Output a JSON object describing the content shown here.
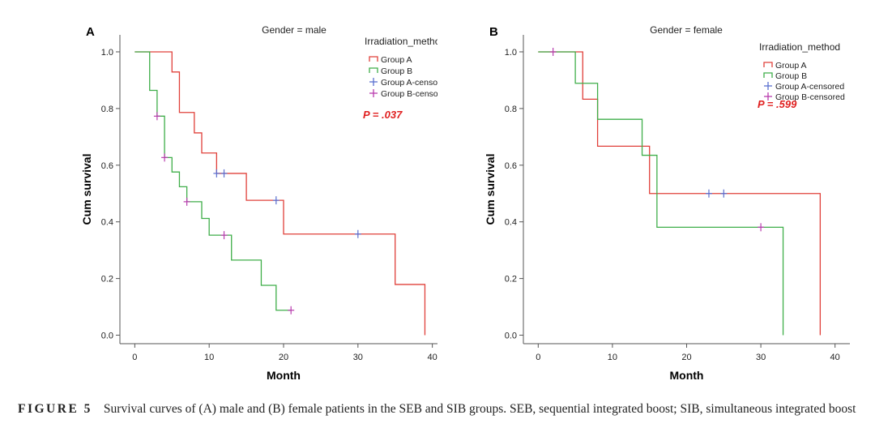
{
  "figure": {
    "label": "FIGURE 5",
    "caption": "Survival curves of (A) male and (B) female patients in the SEB and SIB groups. SEB, sequential integrated boost; SIB, simultaneous integrated boost"
  },
  "legend_title": "Irradiation_method",
  "legend_entries": [
    "Group A",
    "Group B",
    "Group A-censored",
    "Group B-censored"
  ],
  "colors": {
    "group_a": "#e0403a",
    "group_b": "#3fae49",
    "censor_a": "#5a6fd0",
    "censor_b": "#b83cae",
    "p_value": "#e02020"
  },
  "chart_data": [
    {
      "type": "line",
      "panel_label": "A",
      "title": "Gender = male",
      "xlabel": "Month",
      "ylabel": "Cum survival",
      "xlim": [
        -2,
        42
      ],
      "ylim": [
        -0.03,
        1.06
      ],
      "xticks": [
        0,
        10,
        20,
        30,
        40
      ],
      "yticks": [
        0.0,
        0.2,
        0.4,
        0.6,
        0.8,
        1.0
      ],
      "ytick_labels": [
        "0.0",
        "0.2",
        "0.4",
        "0.6",
        "0.8",
        "1.0"
      ],
      "p_value": "P = .037",
      "series": [
        {
          "name": "Group A",
          "x": [
            0,
            5,
            6,
            8,
            9,
            11,
            15,
            20,
            35,
            39,
            39
          ],
          "y": [
            1.0,
            0.929,
            0.786,
            0.714,
            0.643,
            0.571,
            0.476,
            0.357,
            0.179,
            0.179,
            0.0
          ]
        },
        {
          "name": "Group B",
          "x": [
            0,
            2,
            3,
            4,
            5,
            6,
            7,
            9,
            10,
            13,
            17,
            19,
            21
          ],
          "y": [
            1.0,
            0.864,
            0.773,
            0.627,
            0.576,
            0.524,
            0.471,
            0.412,
            0.353,
            0.265,
            0.176,
            0.088,
            0.088
          ]
        },
        {
          "name": "Group A-censored",
          "x": [
            11,
            12,
            19,
            30
          ],
          "y": [
            0.571,
            0.571,
            0.476,
            0.357
          ]
        },
        {
          "name": "Group B-censored",
          "x": [
            3,
            4,
            7,
            12,
            21
          ],
          "y": [
            0.773,
            0.627,
            0.471,
            0.353,
            0.088
          ]
        }
      ]
    },
    {
      "type": "line",
      "panel_label": "B",
      "title": "Gender = female",
      "xlabel": "Month",
      "ylabel": "Cum survival",
      "xlim": [
        -2,
        42
      ],
      "ylim": [
        -0.03,
        1.06
      ],
      "xticks": [
        0,
        10,
        20,
        30,
        40
      ],
      "yticks": [
        0.0,
        0.2,
        0.4,
        0.6,
        0.8,
        1.0
      ],
      "ytick_labels": [
        "0.0",
        "0.2",
        "0.4",
        "0.6",
        "0.8",
        "1.0"
      ],
      "p_value": "P = .599",
      "series": [
        {
          "name": "Group A",
          "x": [
            0,
            6,
            8,
            15,
            38,
            38
          ],
          "y": [
            1.0,
            0.833,
            0.667,
            0.5,
            0.5,
            0.0
          ]
        },
        {
          "name": "Group B",
          "x": [
            0,
            5,
            8,
            14,
            16,
            33,
            33
          ],
          "y": [
            1.0,
            0.889,
            0.762,
            0.635,
            0.381,
            0.381,
            0.0
          ]
        },
        {
          "name": "Group A-censored",
          "x": [
            23,
            25
          ],
          "y": [
            0.5,
            0.5
          ]
        },
        {
          "name": "Group B-censored",
          "x": [
            2,
            30
          ],
          "y": [
            1.0,
            0.381
          ]
        }
      ]
    }
  ]
}
